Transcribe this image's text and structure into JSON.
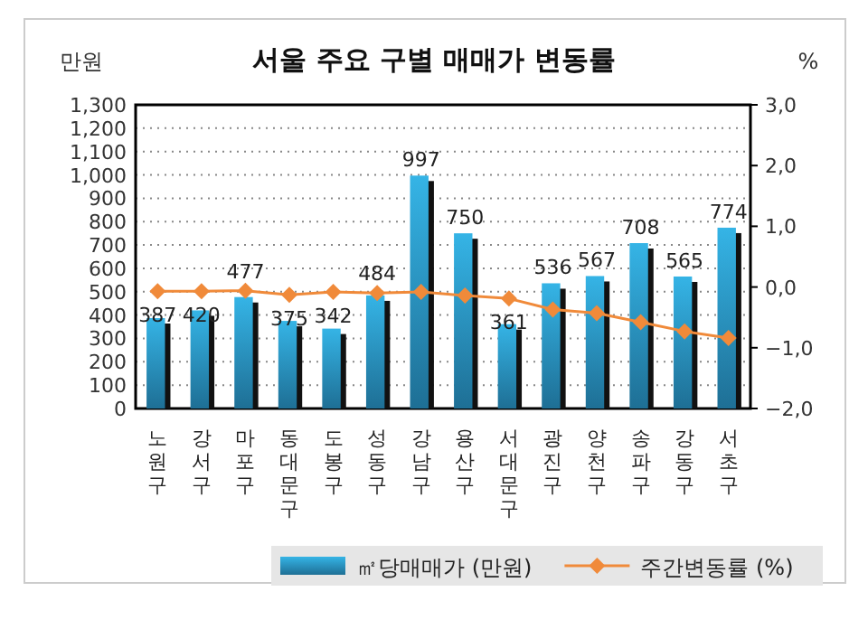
{
  "chart_data": {
    "type": "bar",
    "title": "서울 주요 구별 매매가 변동률",
    "ylabel": "만원",
    "y2label": "%",
    "categories": [
      "노원구",
      "강서구",
      "마포구",
      "동대문구",
      "도봉구",
      "성동구",
      "강남구",
      "용산구",
      "서대문구",
      "광진구",
      "양천구",
      "송파구",
      "강동구",
      "서초구"
    ],
    "series": [
      {
        "name": "㎡당매매가 (만원)",
        "color": "#35b4e6",
        "values": [
          387,
          420,
          477,
          375,
          342,
          484,
          997,
          750,
          361,
          536,
          567,
          708,
          565,
          774
        ],
        "value_labels": [
          "387",
          "420",
          "477",
          "375",
          "342",
          "484",
          "997",
          "750",
          "361",
          "536",
          "567",
          "708",
          "565",
          "774"
        ]
      },
      {
        "name": "주간변동률 (%)",
        "type": "line",
        "axis": "y2",
        "color": "#f08a3a",
        "marker": "diamond",
        "values": [
          -0.07,
          -0.07,
          -0.06,
          -0.13,
          -0.08,
          -0.1,
          -0.08,
          -0.14,
          -0.19,
          -0.37,
          -0.43,
          -0.58,
          -0.73,
          -0.84
        ]
      }
    ],
    "ylim": [
      0,
      1300
    ],
    "yticks": [
      0,
      100,
      200,
      300,
      400,
      500,
      600,
      700,
      800,
      900,
      {
        "value": 1000,
        "label": "1,000"
      },
      {
        "value": 1100,
        "label": "1,100"
      },
      {
        "value": 1200,
        "label": "1,200"
      },
      {
        "value": 1300,
        "label": "1,300"
      }
    ],
    "y2lim": [
      -2,
      3
    ],
    "y2ticks": [
      {
        "value": -2,
        "label": "−2,0"
      },
      {
        "value": -1,
        "label": "−1,0"
      },
      {
        "value": 0,
        "label": "0,0"
      },
      {
        "value": 1,
        "label": "1,0"
      },
      {
        "value": 2,
        "label": "2,0"
      },
      {
        "value": 3,
        "label": "3,0"
      }
    ],
    "grid": "y",
    "legend": "bottom"
  }
}
